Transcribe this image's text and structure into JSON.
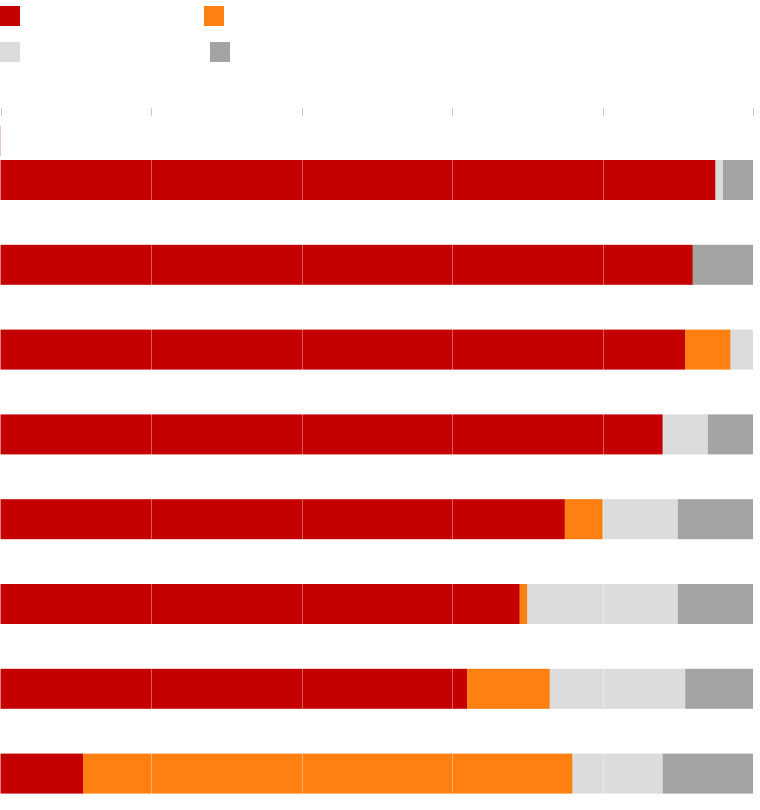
{
  "chart_data": {
    "type": "bar",
    "orientation": "horizontal",
    "stacked": true,
    "title": "",
    "xlabel": "",
    "ylabel": "",
    "xlim": [
      0,
      100
    ],
    "x_ticks": [
      0,
      20,
      40,
      60,
      80,
      100
    ],
    "x_tick_labels_visible": false,
    "grid": true,
    "legend_position": "top-left",
    "categories": [
      "",
      "",
      "",
      "",
      "",
      "",
      "",
      ""
    ],
    "series": [
      {
        "color": "#c40000",
        "values": [
          95,
          92,
          91,
          88,
          75,
          69,
          62,
          11
        ]
      },
      {
        "color": "#ff8012",
        "values": [
          0,
          0,
          6,
          0,
          5,
          1,
          11,
          65
        ]
      },
      {
        "color": "#dcdcdc",
        "values": [
          1,
          0,
          3,
          6,
          10,
          20,
          18,
          12
        ]
      },
      {
        "color": "#a3a3a3",
        "values": [
          4,
          8,
          0,
          6,
          10,
          10,
          9,
          12
        ]
      }
    ]
  }
}
